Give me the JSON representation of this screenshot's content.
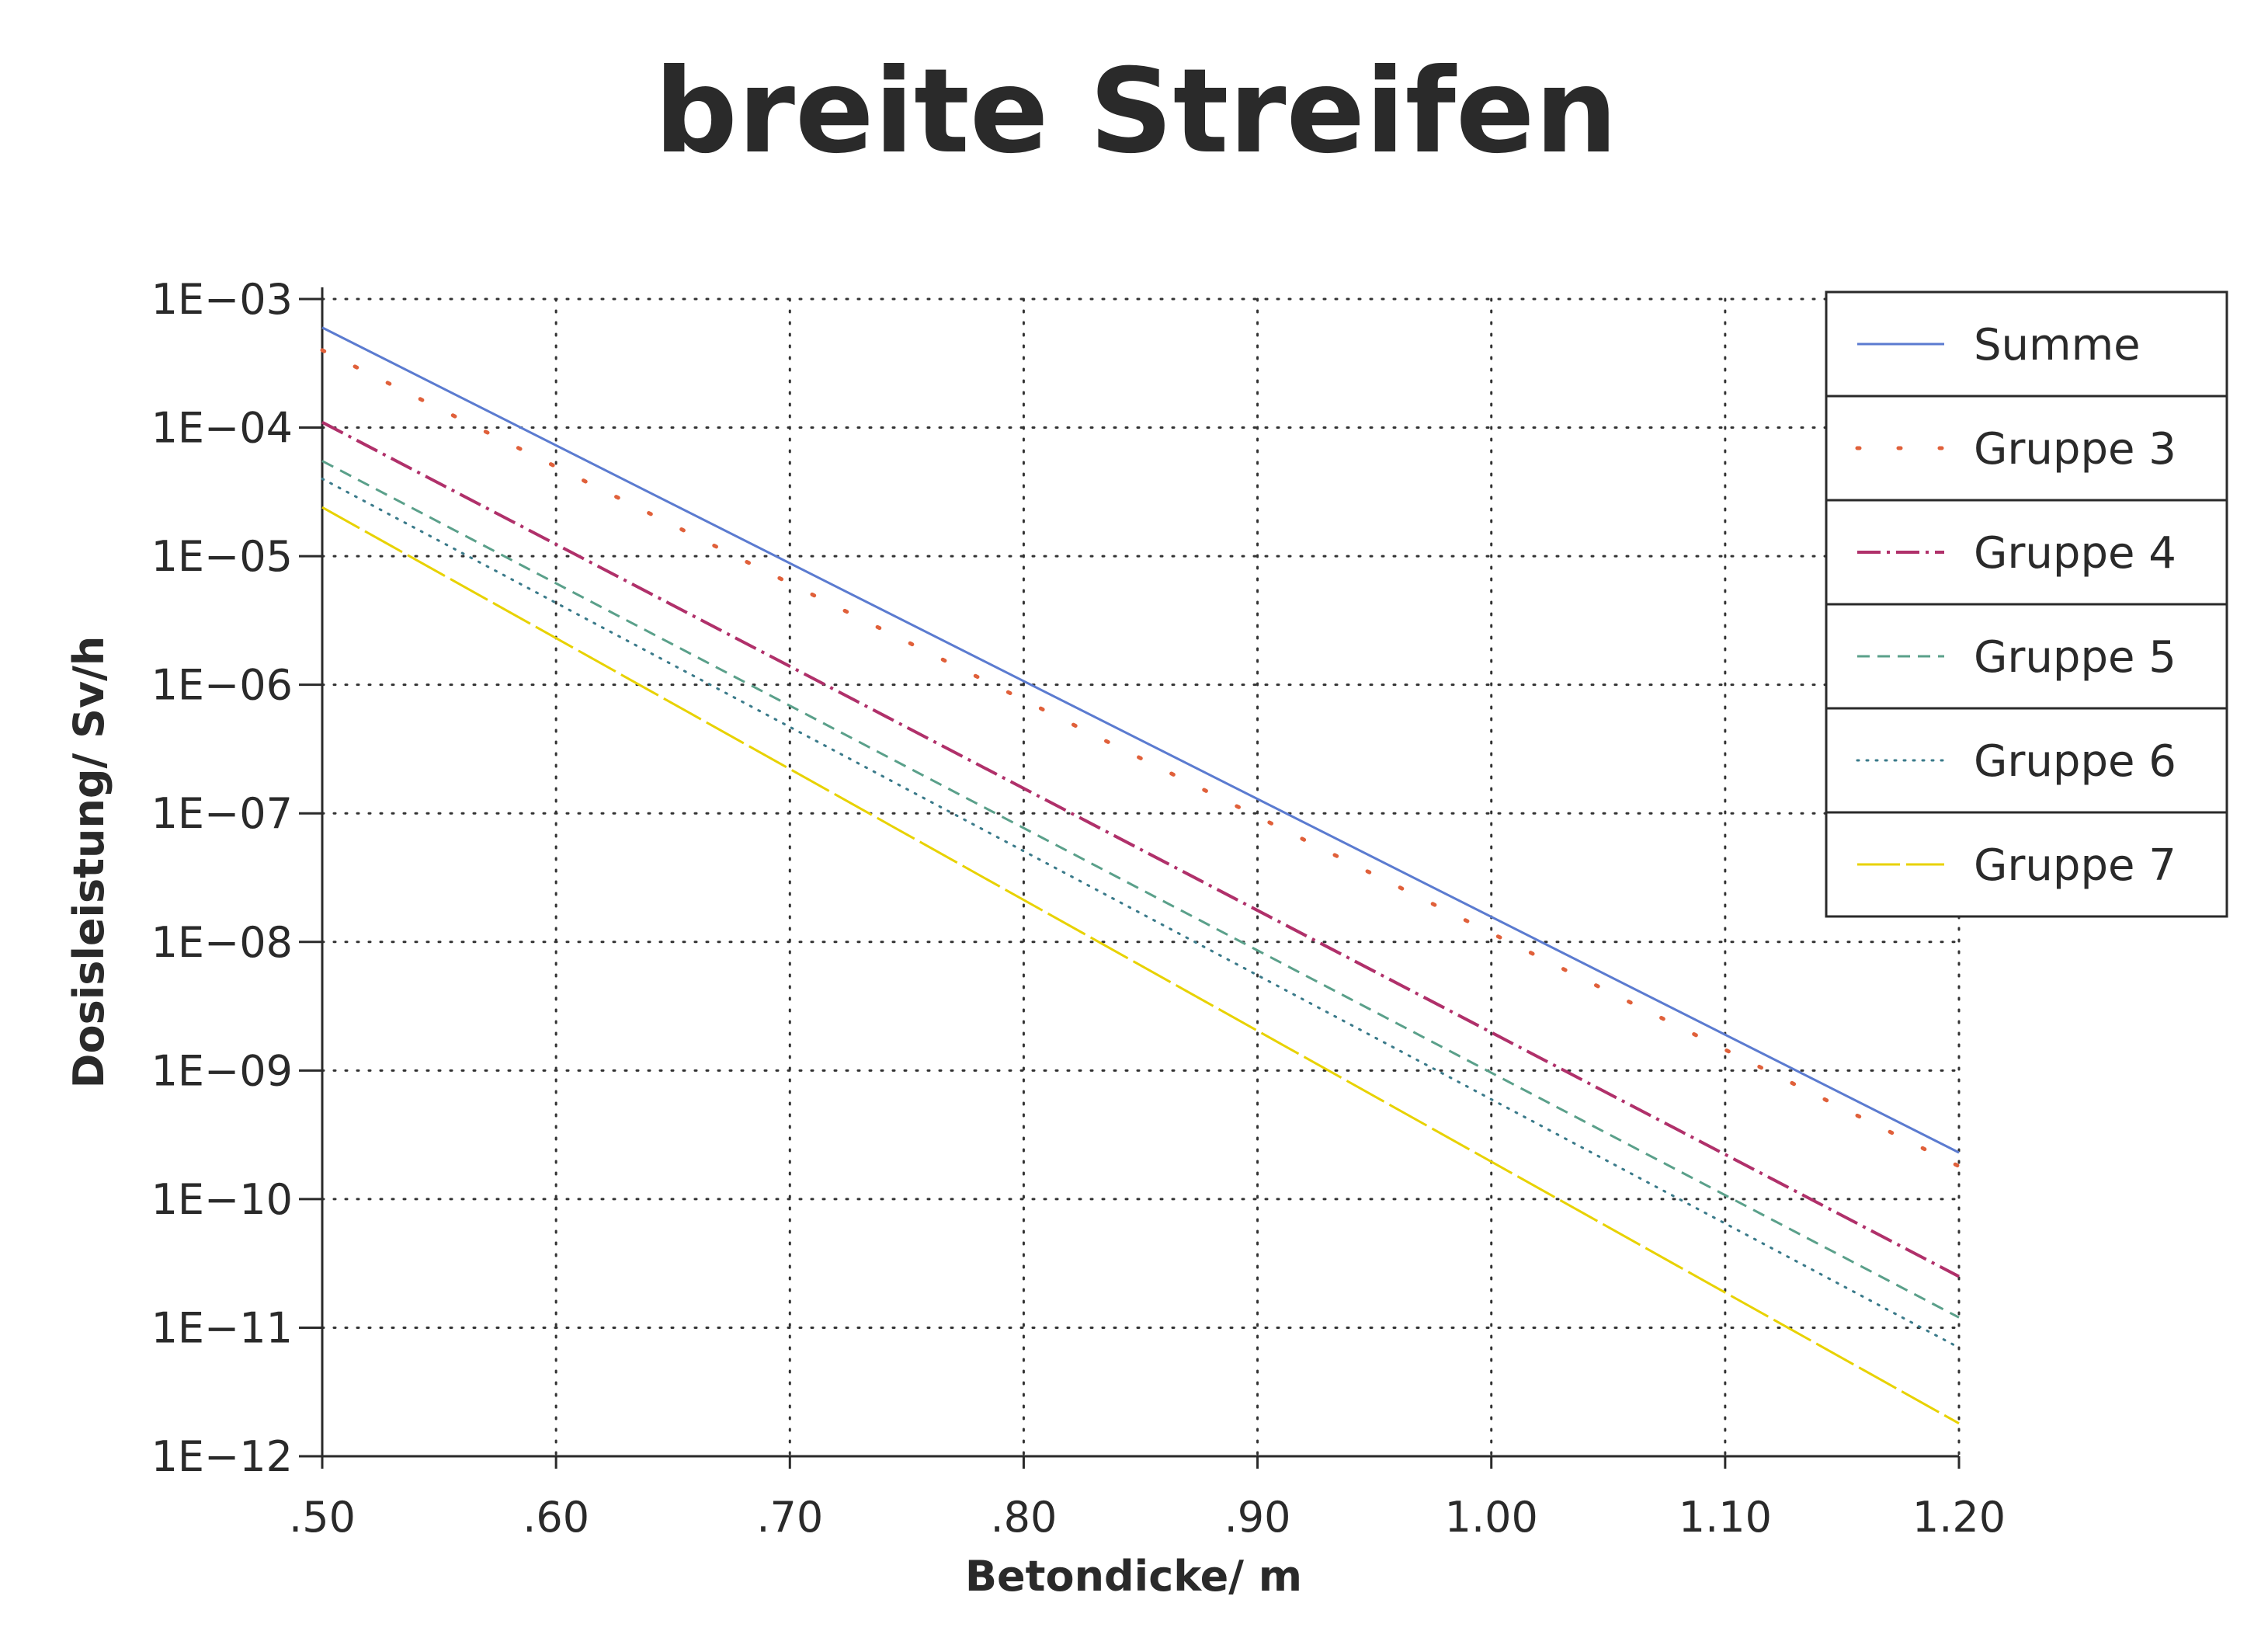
{
  "chart_data": {
    "type": "line",
    "title": "breite Streifen",
    "xlabel": "Betondicke/ m",
    "ylabel": "Dosisleistung/ Sv/h",
    "xlim": [
      0.5,
      1.2
    ],
    "ylim": [
      1e-12,
      0.001
    ],
    "y_scale": "log",
    "grid": true,
    "legend_position": "top-right",
    "x_ticks": [
      0.5,
      0.6,
      0.7,
      0.8,
      0.9,
      1.0,
      1.1,
      1.2
    ],
    "x_tick_labels": [
      ".50",
      ".60",
      ".70",
      ".80",
      ".90",
      "1.00",
      "1.10",
      "1.20"
    ],
    "y_ticks": [
      0.001,
      0.0001,
      1e-05,
      1e-06,
      1e-07,
      1e-08,
      1e-09,
      1e-10,
      1e-11,
      1e-12
    ],
    "y_tick_labels": [
      "1E−03",
      "1E−04",
      "1E−05",
      "1E−06",
      "1E−07",
      "1E−08",
      "1E−09",
      "1E−10",
      "1E−11",
      "1E−12"
    ],
    "series": [
      {
        "name": "Summe",
        "color": "#5b7bd0",
        "style": "solid",
        "x": [
          0.5,
          1.2
        ],
        "y": [
          0.0006,
          2.3e-10
        ]
      },
      {
        "name": "Gruppe 3",
        "color": "#e0603a",
        "style": "sparse-dots",
        "x": [
          0.5,
          1.2
        ],
        "y": [
          0.0004,
          1.8e-10
        ]
      },
      {
        "name": "Gruppe 4",
        "color": "#b0306a",
        "style": "dash-dot",
        "x": [
          0.5,
          1.2
        ],
        "y": [
          0.00011,
          2.5e-11
        ]
      },
      {
        "name": "Gruppe 5",
        "color": "#5aa08a",
        "style": "dashed",
        "x": [
          0.5,
          1.2
        ],
        "y": [
          5.5e-05,
          1.2e-11
        ]
      },
      {
        "name": "Gruppe 6",
        "color": "#3a7a8a",
        "style": "dotted",
        "x": [
          0.5,
          1.2
        ],
        "y": [
          4e-05,
          7e-12
        ]
      },
      {
        "name": "Gruppe 7",
        "color": "#e8d200",
        "style": "long-dash",
        "x": [
          0.5,
          1.2
        ],
        "y": [
          2.4e-05,
          1.8e-12
        ]
      }
    ]
  }
}
